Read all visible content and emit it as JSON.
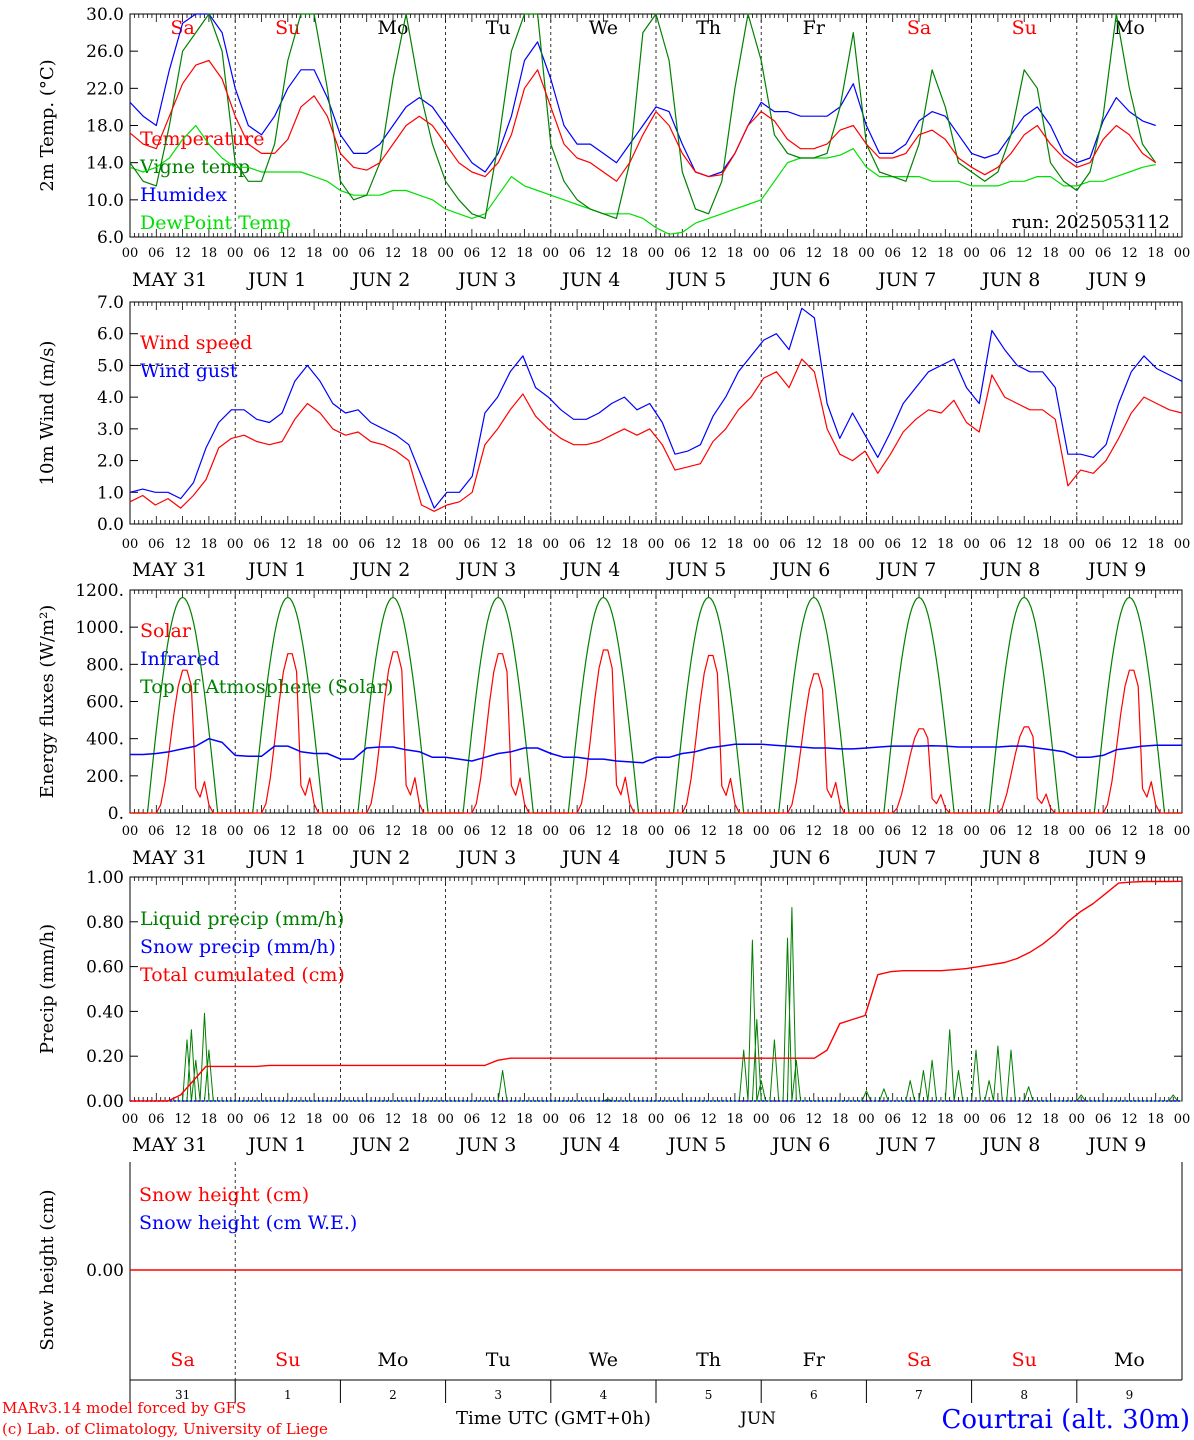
{
  "chart_data": [
    {
      "type": "line",
      "ylabel": "2m Temp. (°C)",
      "ylim": [
        6,
        30
      ],
      "yticks": [
        "30.0",
        "26.0",
        "22.0",
        "18.0",
        "14.0",
        "10.0",
        "6.0"
      ],
      "run_label": "run: 2025053112",
      "series": [
        {
          "name": "Temperature",
          "color": "#ff0000",
          "values": [
            17.2,
            16,
            15.5,
            19,
            22.5,
            24.5,
            25,
            23,
            19,
            16,
            15,
            15,
            16.5,
            20,
            21.2,
            19,
            15,
            13.5,
            13.2,
            14,
            16,
            18,
            19,
            18,
            16,
            14,
            13,
            12.5,
            14,
            17,
            22,
            24,
            20,
            16,
            14.5,
            14,
            13,
            12,
            14,
            17,
            19.5,
            18,
            15,
            13,
            12.5,
            12.7,
            15,
            18,
            19.5,
            18.5,
            16.5,
            15.5,
            15.5,
            16,
            17.5,
            18,
            16,
            14.5,
            14.5,
            15,
            17,
            17.5,
            16.5,
            14.5,
            13.5,
            12.7,
            13.5,
            15,
            17,
            18,
            16,
            14.5,
            13.5,
            14,
            16.5,
            18,
            17,
            15,
            14
          ]
        },
        {
          "name": "Vigne temp",
          "color": "#008000",
          "values": [
            14,
            12,
            11.5,
            18,
            26,
            28,
            30,
            26,
            14,
            12,
            12,
            16,
            25,
            30,
            30,
            22,
            12,
            10,
            10.5,
            14,
            23,
            30,
            22,
            16,
            12,
            10,
            8.5,
            8,
            16,
            26,
            30,
            30,
            16,
            12,
            10,
            9,
            8.5,
            8,
            14,
            28,
            30,
            25,
            13,
            9,
            8.5,
            12,
            22,
            30,
            25,
            17,
            15,
            14.5,
            14.5,
            15,
            20,
            28,
            16,
            13,
            12.5,
            12,
            16,
            24,
            20,
            14,
            13,
            12,
            13,
            17,
            24,
            22,
            14,
            12,
            11,
            13,
            19,
            30,
            22,
            16,
            14
          ]
        },
        {
          "name": "Humidex",
          "color": "#0000ff",
          "values": [
            20.5,
            19,
            18,
            24,
            29,
            30,
            30,
            28,
            22,
            18,
            17,
            19,
            22,
            24,
            24,
            21,
            17,
            15,
            15,
            16,
            18,
            20,
            21,
            20,
            18,
            16,
            14,
            13,
            15,
            19,
            25,
            27,
            23,
            18,
            16,
            16,
            15,
            14,
            16,
            18,
            20,
            19.5,
            16,
            13,
            12.5,
            13,
            15,
            18,
            20.5,
            19.5,
            19.5,
            19,
            19,
            19,
            20,
            22.5,
            18,
            15,
            15,
            16,
            18.5,
            19.5,
            19,
            17,
            15,
            14.5,
            15,
            17,
            19,
            20,
            18,
            15,
            14,
            14.5,
            18.5,
            21,
            19.5,
            18.5,
            18
          ]
        },
        {
          "name": "DewPoint Temp",
          "color": "#00e000",
          "values": [
            13.5,
            13,
            13.5,
            14.5,
            16.5,
            18,
            16,
            14.5,
            13.5,
            13.5,
            13,
            13,
            13,
            13,
            12.5,
            12,
            11,
            10.5,
            10.5,
            10.5,
            11,
            11,
            10.5,
            10,
            9,
            8.5,
            8,
            8.5,
            10.5,
            12.5,
            11.5,
            11,
            10.5,
            10,
            9.5,
            9,
            8.5,
            8.5,
            8.5,
            8,
            7,
            6.3,
            6.5,
            7.5,
            8,
            8.5,
            9,
            9.5,
            10,
            12,
            14,
            14.5,
            14.5,
            14.5,
            14.8,
            15.5,
            13.5,
            12.5,
            12.5,
            12.5,
            12.5,
            12,
            12,
            12,
            11.5,
            11.5,
            11.5,
            12,
            12,
            12.5,
            12.5,
            11.5,
            11.5,
            12,
            12,
            12.5,
            13,
            13.5,
            13.8
          ]
        }
      ]
    },
    {
      "type": "line",
      "ylabel": "10m Wind (m/s)",
      "ylim": [
        0,
        7
      ],
      "yticks": [
        "7.0",
        "6.0",
        "5.0",
        "4.0",
        "3.0",
        "2.0",
        "1.0",
        "0.0"
      ],
      "reference_line": 5,
      "series": [
        {
          "name": "Wind speed",
          "color": "#ff0000",
          "values": [
            0.7,
            0.9,
            0.6,
            0.8,
            0.5,
            0.9,
            1.4,
            2.4,
            2.7,
            2.8,
            2.6,
            2.5,
            2.6,
            3.3,
            3.8,
            3.5,
            3,
            2.8,
            2.9,
            2.6,
            2.5,
            2.3,
            2,
            0.6,
            0.4,
            0.6,
            0.7,
            1,
            2.5,
            3,
            3.6,
            4.1,
            3.4,
            3,
            2.7,
            2.5,
            2.5,
            2.6,
            2.8,
            3,
            2.8,
            3,
            2.5,
            1.7,
            1.8,
            1.9,
            2.6,
            3,
            3.6,
            4,
            4.6,
            4.8,
            4.3,
            5.2,
            4.8,
            3,
            2.2,
            2,
            2.3,
            1.6,
            2.2,
            2.9,
            3.3,
            3.6,
            3.5,
            3.9,
            3.2,
            2.9,
            4.7,
            4,
            3.8,
            3.6,
            3.6,
            3.3,
            1.2,
            1.7,
            1.6,
            2,
            2.7,
            3.5,
            4,
            3.8,
            3.6,
            3.5
          ]
        },
        {
          "name": "Wind gust",
          "color": "#0000ff",
          "values": [
            1,
            1.1,
            1,
            1,
            0.8,
            1.3,
            2.4,
            3.2,
            3.6,
            3.6,
            3.3,
            3.2,
            3.5,
            4.5,
            5,
            4.5,
            3.8,
            3.5,
            3.6,
            3.2,
            3,
            2.8,
            2.5,
            1.5,
            0.5,
            1,
            1,
            1.5,
            3.5,
            4,
            4.8,
            5.3,
            4.3,
            4,
            3.6,
            3.3,
            3.3,
            3.5,
            3.8,
            4,
            3.6,
            3.8,
            3.2,
            2.2,
            2.3,
            2.5,
            3.4,
            4,
            4.8,
            5.3,
            5.8,
            6,
            5.5,
            6.8,
            6.5,
            3.8,
            2.7,
            3.5,
            2.8,
            2.1,
            2.9,
            3.8,
            4.3,
            4.8,
            5,
            5.2,
            4.3,
            3.8,
            6.1,
            5.5,
            5,
            4.8,
            4.8,
            4.3,
            2.2,
            2.2,
            2.1,
            2.5,
            3.8,
            4.8,
            5.3,
            4.9,
            4.7,
            4.5
          ]
        }
      ]
    },
    {
      "type": "line",
      "ylabel": "Energy fluxes (W/m²)",
      "ylim": [
        0,
        1200
      ],
      "yticks": [
        "1200.",
        "1000.",
        "800.",
        "600.",
        "400.",
        "200.",
        "0."
      ],
      "series": [
        {
          "name": "Solar",
          "color": "#ff0000",
          "day_peaks": [
            780,
            870,
            880,
            870,
            890,
            860,
            760,
            460,
            470,
            780
          ]
        },
        {
          "name": "Infrared",
          "color": "#0000ff",
          "values": [
            315,
            315,
            320,
            330,
            345,
            360,
            400,
            380,
            310,
            305,
            305,
            360,
            360,
            330,
            320,
            320,
            290,
            290,
            350,
            355,
            355,
            340,
            330,
            300,
            300,
            290,
            280,
            300,
            320,
            330,
            350,
            350,
            320,
            300,
            300,
            290,
            290,
            280,
            275,
            270,
            300,
            300,
            320,
            330,
            350,
            360,
            370,
            370,
            370,
            365,
            360,
            355,
            350,
            350,
            345,
            345,
            350,
            355,
            360,
            360,
            360,
            362,
            360,
            355,
            355,
            355,
            355,
            360,
            360,
            350,
            340,
            330,
            300,
            300,
            310,
            340,
            350,
            360,
            365,
            365,
            365
          ]
        },
        {
          "name": "Top of Atmosphere (Solar)",
          "color": "#008000",
          "peak": 1160,
          "sunrise_h": 4,
          "sunset_h": 20
        }
      ]
    },
    {
      "type": "line",
      "ylabel": "Precip (mm/h)",
      "ylim": [
        0,
        1.1
      ],
      "yticks": [
        "1.00",
        "0.80",
        "0.60",
        "0.40",
        "0.20",
        "0.00"
      ],
      "series": [
        {
          "name": "Liquid precip (mm/h)",
          "color": "#008000",
          "events": [
            [
              13,
              0.3
            ],
            [
              14,
              0.35
            ],
            [
              15,
              0.2
            ],
            [
              17,
              0.43
            ],
            [
              18,
              0.25
            ],
            [
              85,
              0.15
            ],
            [
              109,
              0.01
            ],
            [
              140,
              0.25
            ],
            [
              142,
              0.79
            ],
            [
              143,
              0.4
            ],
            [
              144,
              0.1
            ],
            [
              147,
              0.3
            ],
            [
              150,
              0.8
            ],
            [
              151,
              0.95
            ],
            [
              152,
              0.2
            ],
            [
              168,
              0.05
            ],
            [
              172,
              0.06
            ],
            [
              178,
              0.1
            ],
            [
              181,
              0.15
            ],
            [
              183,
              0.2
            ],
            [
              187,
              0.35
            ],
            [
              189,
              0.15
            ],
            [
              193,
              0.25
            ],
            [
              196,
              0.1
            ],
            [
              198,
              0.27
            ],
            [
              201,
              0.25
            ],
            [
              205,
              0.07
            ],
            [
              217,
              0.03
            ],
            [
              238,
              0.03
            ]
          ]
        },
        {
          "name": "Snow precip (mm/h)",
          "color": "#0000ff",
          "values": [
            0
          ]
        },
        {
          "name": "Total cumulated (cm)",
          "color": "#ff0000",
          "values": [
            0,
            0,
            0,
            0,
            0.03,
            0.1,
            0.17,
            0.17,
            0.17,
            0.17,
            0.17,
            0.175,
            0.175,
            0.175,
            0.175,
            0.175,
            0.175,
            0.175,
            0.175,
            0.175,
            0.175,
            0.175,
            0.175,
            0.175,
            0.175,
            0.175,
            0.175,
            0.175,
            0.175,
            0.2,
            0.21,
            0.21,
            0.21,
            0.21,
            0.21,
            0.21,
            0.21,
            0.21,
            0.21,
            0.21,
            0.21,
            0.21,
            0.21,
            0.21,
            0.21,
            0.21,
            0.21,
            0.21,
            0.21,
            0.21,
            0.21,
            0.21,
            0.21,
            0.21,
            0.21,
            0.25,
            0.38,
            0.4,
            0.42,
            0.62,
            0.635,
            0.64,
            0.64,
            0.64,
            0.64,
            0.645,
            0.65,
            0.66,
            0.67,
            0.68,
            0.7,
            0.73,
            0.77,
            0.82,
            0.88,
            0.93,
            0.97,
            1.02,
            1.07,
            1.075,
            1.078,
            1.078,
            1.078,
            1.079
          ]
        }
      ]
    },
    {
      "type": "line",
      "ylabel": "Snow height (cm)",
      "yticks": [
        "0.00"
      ],
      "series": [
        {
          "name": "Snow height (cm)",
          "color": "#ff0000",
          "values": [
            0
          ]
        },
        {
          "name": "Snow height (cm W.E.)",
          "color": "#0000ff",
          "values": [
            0
          ]
        }
      ]
    }
  ],
  "hour_ticks": [
    "00",
    "06",
    "12",
    "18"
  ],
  "last_tick": "00",
  "date_labels": [
    "MAY 31",
    "JUN  1",
    "JUN  2",
    "JUN  3",
    "JUN  4",
    "JUN  5",
    "JUN  6",
    "JUN  7",
    "JUN  8",
    "JUN  9"
  ],
  "weekdays": [
    {
      "label": "Sa",
      "color": "#ff0000"
    },
    {
      "label": "Su",
      "color": "#ff0000"
    },
    {
      "label": "Mo",
      "color": "#000000"
    },
    {
      "label": "Tu",
      "color": "#000000"
    },
    {
      "label": "We",
      "color": "#000000"
    },
    {
      "label": "Th",
      "color": "#000000"
    },
    {
      "label": "Fr",
      "color": "#000000"
    },
    {
      "label": "Sa",
      "color": "#ff0000"
    },
    {
      "label": "Su",
      "color": "#ff0000"
    },
    {
      "label": "Mo",
      "color": "#000000"
    }
  ],
  "day_numbers": [
    "31",
    "1",
    "2",
    "3",
    "4",
    "5",
    "6",
    "7",
    "8",
    "9"
  ],
  "footer": {
    "model": "MARv3.14 model forced by GFS",
    "credit": "(c) Lab. of Climatology, University of Liege",
    "axis_title": "Time UTC (GMT+0h)",
    "month": "JUN",
    "station": "Courtrai (alt. 30m)"
  }
}
